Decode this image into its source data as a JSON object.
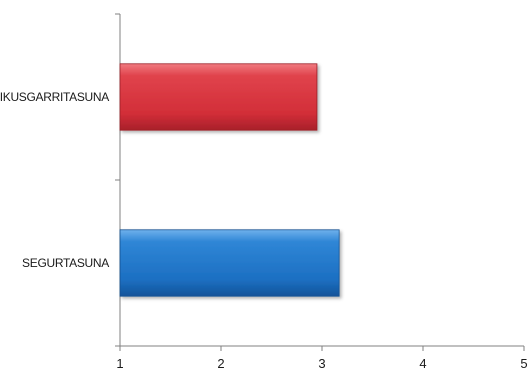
{
  "chart_data": {
    "type": "bar",
    "orientation": "horizontal",
    "title": "",
    "xlabel": "",
    "ylabel": "",
    "categories": [
      "IKUSGARRITASUNA",
      "SEGURTASUNA"
    ],
    "values": [
      2.95,
      3.17
    ],
    "colors": [
      "#d9323c",
      "#1f74c8"
    ],
    "xlim": [
      1,
      5
    ],
    "xticks": [
      "1",
      "2",
      "3",
      "4",
      "5"
    ],
    "grid": false,
    "legend": "none"
  }
}
